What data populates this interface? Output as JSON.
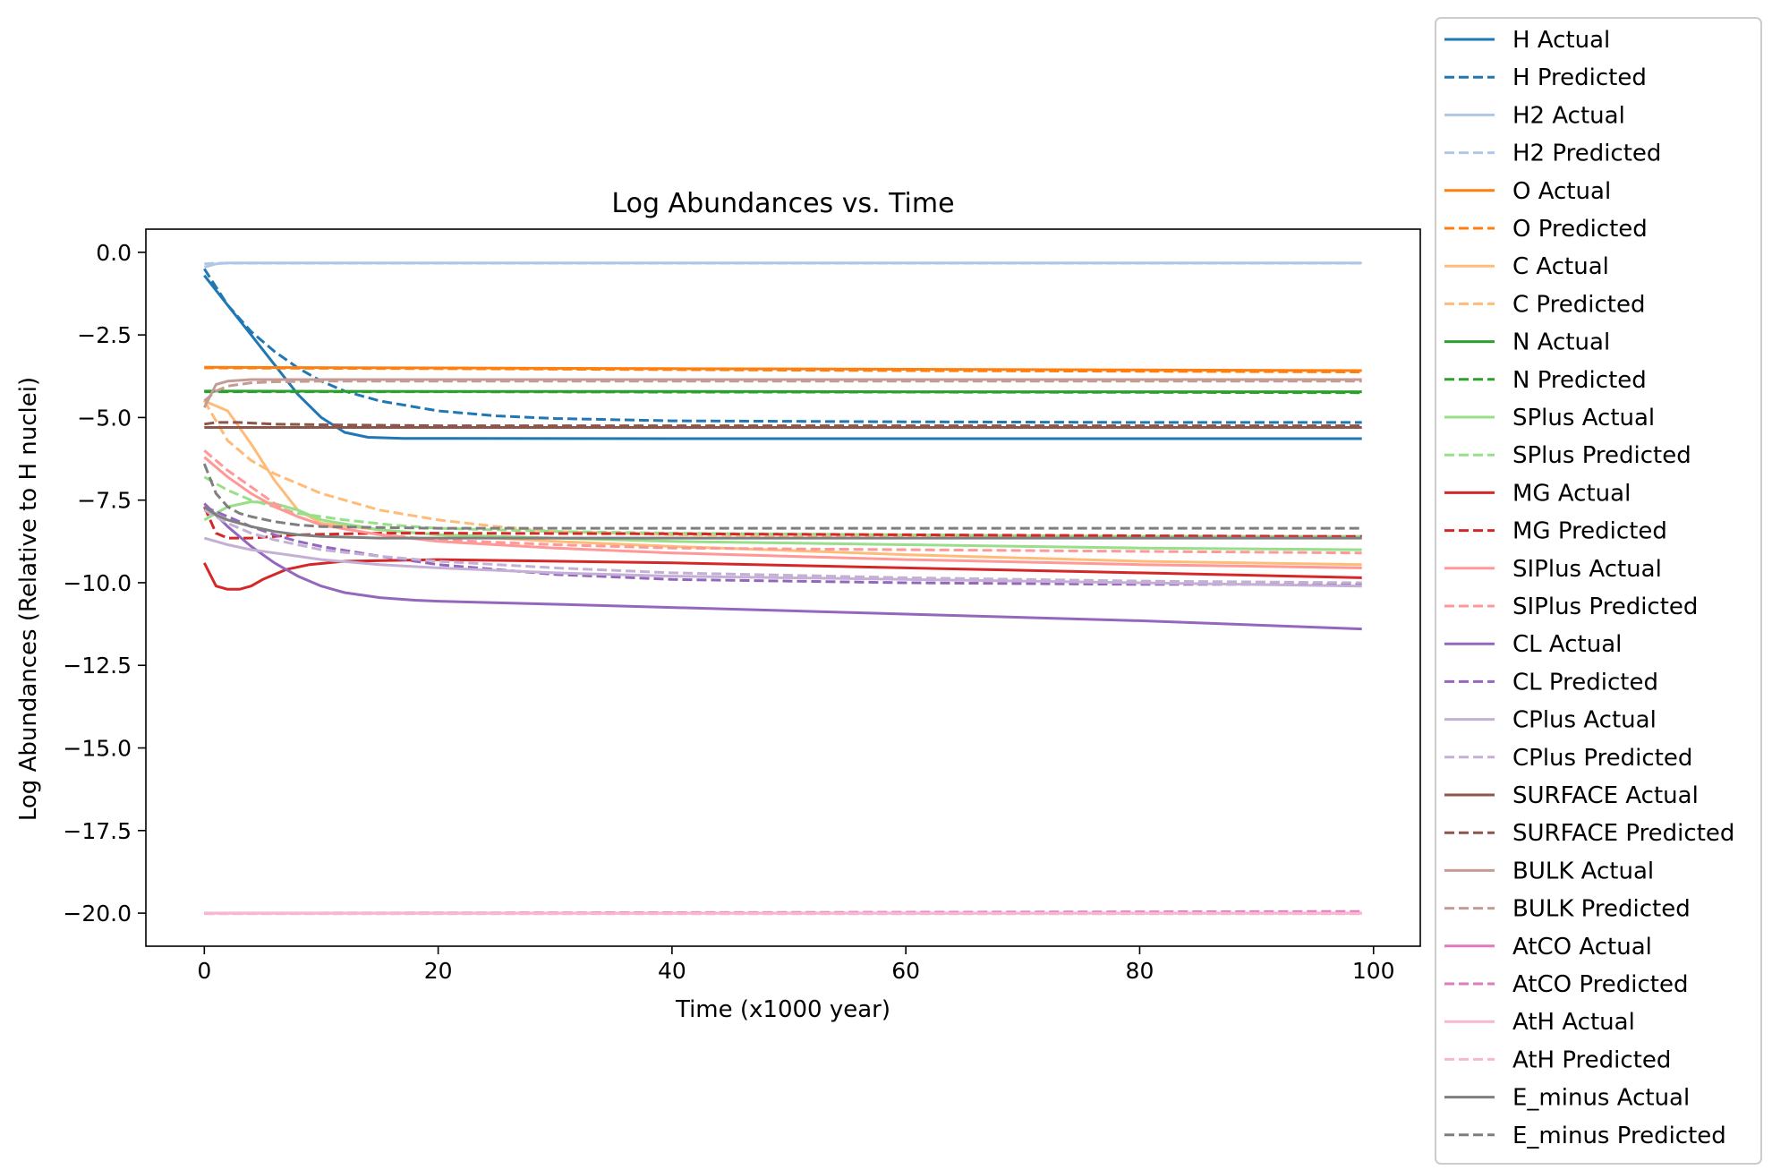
{
  "chart_data": {
    "type": "line",
    "title": "Log Abundances vs. Time",
    "xlabel": "Time (x1000 year)",
    "ylabel": "Log Abundances (Relative to H nuclei)",
    "xlim": [
      -5,
      104
    ],
    "ylim": [
      -21.0,
      0.7
    ],
    "xticks": [
      0,
      20,
      40,
      60,
      80,
      100
    ],
    "xtick_labels": [
      "0",
      "20",
      "40",
      "60",
      "80",
      "100"
    ],
    "yticks": [
      0.0,
      -2.5,
      -5.0,
      -7.5,
      -10.0,
      -12.5,
      -15.0,
      -17.5,
      -20.0
    ],
    "ytick_labels": [
      "0.0",
      "−2.5",
      "−5.0",
      "−7.5",
      "−10.0",
      "−12.5",
      "−15.0",
      "−17.5",
      "−20.0"
    ],
    "grid": false,
    "legend_position": "outside-right",
    "series": [
      {
        "name": "H Actual",
        "color": "#1f77b4",
        "style": "solid",
        "x": [
          0,
          2,
          4,
          6,
          8,
          10,
          12,
          14,
          17,
          20,
          40,
          60,
          80,
          99
        ],
        "y": [
          -0.7,
          -1.6,
          -2.5,
          -3.4,
          -4.3,
          -5.0,
          -5.45,
          -5.6,
          -5.63,
          -5.63,
          -5.64,
          -5.64,
          -5.64,
          -5.64
        ]
      },
      {
        "name": "H Predicted",
        "color": "#1f77b4",
        "style": "dashed",
        "x": [
          0,
          2,
          4,
          6,
          8,
          10,
          12,
          15,
          20,
          25,
          30,
          40,
          60,
          80,
          99
        ],
        "y": [
          -0.5,
          -1.6,
          -2.4,
          -3.0,
          -3.5,
          -3.9,
          -4.2,
          -4.5,
          -4.8,
          -4.95,
          -5.03,
          -5.1,
          -5.13,
          -5.15,
          -5.15
        ]
      },
      {
        "name": "H2 Actual",
        "color": "#aec7e8",
        "style": "solid",
        "x": [
          0,
          1,
          2,
          5,
          99
        ],
        "y": [
          -0.45,
          -0.35,
          -0.32,
          -0.32,
          -0.32
        ]
      },
      {
        "name": "H2 Predicted",
        "color": "#aec7e8",
        "style": "dashed",
        "x": [
          0,
          1,
          2,
          5,
          99
        ],
        "y": [
          -0.35,
          -0.33,
          -0.33,
          -0.33,
          -0.33
        ]
      },
      {
        "name": "O Actual",
        "color": "#ff7f0e",
        "style": "solid",
        "x": [
          0,
          20,
          40,
          60,
          80,
          99
        ],
        "y": [
          -3.48,
          -3.5,
          -3.52,
          -3.54,
          -3.56,
          -3.58
        ]
      },
      {
        "name": "O Predicted",
        "color": "#ff7f0e",
        "style": "dashed",
        "x": [
          0,
          20,
          40,
          60,
          80,
          99
        ],
        "y": [
          -3.5,
          -3.52,
          -3.55,
          -3.58,
          -3.6,
          -3.62
        ]
      },
      {
        "name": "C Actual",
        "color": "#ffbb78",
        "style": "solid",
        "x": [
          0,
          2,
          4,
          6,
          8,
          10,
          15,
          20,
          30,
          40,
          60,
          80,
          99
        ],
        "y": [
          -4.5,
          -4.8,
          -5.8,
          -6.9,
          -7.8,
          -8.2,
          -8.4,
          -8.55,
          -8.75,
          -8.9,
          -9.15,
          -9.35,
          -9.45
        ]
      },
      {
        "name": "C Predicted",
        "color": "#ffbb78",
        "style": "dashed",
        "x": [
          0,
          1,
          2,
          4,
          6,
          8,
          10,
          15,
          20,
          25,
          30,
          40,
          60,
          80,
          99
        ],
        "y": [
          -4.5,
          -5.1,
          -5.7,
          -6.3,
          -6.7,
          -7.0,
          -7.3,
          -7.8,
          -8.1,
          -8.3,
          -8.45,
          -8.55,
          -8.6,
          -8.6,
          -8.6
        ]
      },
      {
        "name": "N Actual",
        "color": "#2ca02c",
        "style": "solid",
        "x": [
          0,
          20,
          40,
          60,
          80,
          99
        ],
        "y": [
          -4.2,
          -4.21,
          -4.21,
          -4.22,
          -4.22,
          -4.22
        ]
      },
      {
        "name": "N Predicted",
        "color": "#2ca02c",
        "style": "dashed",
        "x": [
          0,
          20,
          40,
          60,
          80,
          99
        ],
        "y": [
          -4.22,
          -4.22,
          -4.23,
          -4.23,
          -4.24,
          -4.25
        ]
      },
      {
        "name": "SPlus Actual",
        "color": "#98df8a",
        "style": "solid",
        "x": [
          0,
          2,
          4,
          6,
          8,
          10,
          15,
          20,
          30,
          40,
          60,
          80,
          99
        ],
        "y": [
          -8.1,
          -7.7,
          -7.55,
          -7.6,
          -7.8,
          -8.1,
          -8.4,
          -8.55,
          -8.65,
          -8.75,
          -8.85,
          -8.95,
          -9.0
        ]
      },
      {
        "name": "SPlus Predicted",
        "color": "#98df8a",
        "style": "dashed",
        "x": [
          0,
          2,
          4,
          8,
          12,
          16,
          20,
          30,
          40,
          60,
          80,
          99
        ],
        "y": [
          -6.8,
          -7.2,
          -7.5,
          -7.9,
          -8.1,
          -8.25,
          -8.35,
          -8.45,
          -8.5,
          -8.55,
          -8.6,
          -8.6
        ]
      },
      {
        "name": "MG Actual",
        "color": "#d62728",
        "style": "solid",
        "x": [
          0,
          1,
          2,
          3,
          4,
          5,
          7,
          9,
          12,
          20,
          40,
          60,
          80,
          99
        ],
        "y": [
          -9.4,
          -10.1,
          -10.2,
          -10.2,
          -10.1,
          -9.9,
          -9.6,
          -9.45,
          -9.35,
          -9.3,
          -9.4,
          -9.55,
          -9.7,
          -9.85
        ]
      },
      {
        "name": "MG Predicted",
        "color": "#d62728",
        "style": "dashed",
        "x": [
          0,
          1,
          2,
          4,
          8,
          15,
          20,
          40,
          60,
          80,
          99
        ],
        "y": [
          -7.7,
          -8.5,
          -8.65,
          -8.65,
          -8.55,
          -8.5,
          -8.5,
          -8.52,
          -8.55,
          -8.58,
          -8.6
        ]
      },
      {
        "name": "SIPlus Actual",
        "color": "#ff9896",
        "style": "solid",
        "x": [
          0,
          2,
          4,
          6,
          8,
          10,
          15,
          20,
          30,
          40,
          60,
          80,
          99
        ],
        "y": [
          -6.2,
          -6.8,
          -7.3,
          -7.7,
          -8.0,
          -8.25,
          -8.55,
          -8.75,
          -8.95,
          -9.1,
          -9.3,
          -9.45,
          -9.55
        ]
      },
      {
        "name": "SIPlus Predicted",
        "color": "#ff9896",
        "style": "dashed",
        "x": [
          0,
          2,
          4,
          6,
          8,
          10,
          15,
          20,
          30,
          40,
          60,
          80,
          99
        ],
        "y": [
          -6.0,
          -6.6,
          -7.1,
          -7.6,
          -8.0,
          -8.25,
          -8.55,
          -8.7,
          -8.85,
          -8.95,
          -9.0,
          -9.05,
          -9.1
        ]
      },
      {
        "name": "CL Actual",
        "color": "#9467bd",
        "style": "solid",
        "x": [
          0,
          2,
          4,
          6,
          8,
          10,
          12,
          15,
          18,
          20,
          30,
          40,
          60,
          80,
          99
        ],
        "y": [
          -7.6,
          -8.3,
          -8.9,
          -9.4,
          -9.8,
          -10.1,
          -10.3,
          -10.45,
          -10.53,
          -10.56,
          -10.65,
          -10.75,
          -10.95,
          -11.15,
          -11.4
        ]
      },
      {
        "name": "CL Predicted",
        "color": "#9467bd",
        "style": "dashed",
        "x": [
          0,
          2,
          4,
          6,
          8,
          10,
          15,
          20,
          30,
          40,
          60,
          80,
          99
        ],
        "y": [
          -7.7,
          -8.0,
          -8.3,
          -8.55,
          -8.75,
          -8.9,
          -9.2,
          -9.45,
          -9.75,
          -9.9,
          -10.0,
          -10.05,
          -10.05
        ]
      },
      {
        "name": "CPlus Actual",
        "color": "#c5b0d5",
        "style": "solid",
        "x": [
          0,
          2,
          4,
          6,
          8,
          10,
          15,
          20,
          30,
          40,
          60,
          80,
          99
        ],
        "y": [
          -8.65,
          -8.85,
          -9.0,
          -9.1,
          -9.2,
          -9.3,
          -9.45,
          -9.55,
          -9.7,
          -9.8,
          -9.9,
          -10.0,
          -10.1
        ]
      },
      {
        "name": "CPlus Predicted",
        "color": "#c5b0d5",
        "style": "dashed",
        "x": [
          0,
          2,
          4,
          6,
          8,
          10,
          15,
          20,
          30,
          40,
          60,
          80,
          99
        ],
        "y": [
          -7.8,
          -8.2,
          -8.5,
          -8.7,
          -8.85,
          -9.0,
          -9.2,
          -9.35,
          -9.55,
          -9.7,
          -9.85,
          -9.95,
          -10.0
        ]
      },
      {
        "name": "SURFACE Actual",
        "color": "#8c564b",
        "style": "solid",
        "x": [
          0,
          20,
          40,
          60,
          80,
          99
        ],
        "y": [
          -5.3,
          -5.3,
          -5.3,
          -5.3,
          -5.3,
          -5.3
        ]
      },
      {
        "name": "SURFACE Predicted",
        "color": "#8c564b",
        "style": "dashed",
        "x": [
          0,
          1,
          3,
          6,
          10,
          20,
          40,
          60,
          80,
          99
        ],
        "y": [
          -5.2,
          -5.15,
          -5.15,
          -5.2,
          -5.22,
          -5.25,
          -5.25,
          -5.25,
          -5.25,
          -5.25
        ]
      },
      {
        "name": "BULK Actual",
        "color": "#c49c94",
        "style": "solid",
        "x": [
          0,
          1,
          2,
          4,
          6,
          10,
          20,
          40,
          60,
          80,
          99
        ],
        "y": [
          -4.7,
          -4.0,
          -3.9,
          -3.85,
          -3.85,
          -3.85,
          -3.85,
          -3.85,
          -3.85,
          -3.85,
          -3.85
        ]
      },
      {
        "name": "BULK Predicted",
        "color": "#c49c94",
        "style": "dashed",
        "x": [
          0,
          1,
          2,
          4,
          6,
          10,
          20,
          40,
          60,
          80,
          99
        ],
        "y": [
          -4.5,
          -4.2,
          -4.05,
          -3.95,
          -3.92,
          -3.9,
          -3.9,
          -3.9,
          -3.9,
          -3.9,
          -3.9
        ]
      },
      {
        "name": "AtCO Actual",
        "color": "#e377c2",
        "style": "solid",
        "x": [
          0,
          50,
          99
        ],
        "y": [
          -20.0,
          -20.0,
          -20.0
        ]
      },
      {
        "name": "AtCO Predicted",
        "color": "#e377c2",
        "style": "dashed",
        "x": [
          0,
          50,
          99
        ],
        "y": [
          -20.0,
          -19.98,
          -19.95
        ]
      },
      {
        "name": "AtH Actual",
        "color": "#f7b6d2",
        "style": "solid",
        "x": [
          0,
          50,
          99
        ],
        "y": [
          -20.0,
          -20.0,
          -20.0
        ]
      },
      {
        "name": "AtH Predicted",
        "color": "#f7b6d2",
        "style": "dashed",
        "x": [
          0,
          50,
          99
        ],
        "y": [
          -20.02,
          -20.02,
          -20.02
        ]
      },
      {
        "name": "E_minus Actual",
        "color": "#7f7f7f",
        "style": "solid",
        "x": [
          0,
          1,
          2,
          4,
          6,
          8,
          10,
          15,
          20,
          40,
          60,
          80,
          99
        ],
        "y": [
          -7.7,
          -7.95,
          -8.1,
          -8.3,
          -8.45,
          -8.55,
          -8.6,
          -8.65,
          -8.65,
          -8.65,
          -8.65,
          -8.65,
          -8.65
        ]
      },
      {
        "name": "E_minus Predicted",
        "color": "#7f7f7f",
        "style": "dashed",
        "x": [
          0,
          1,
          2,
          3,
          4,
          6,
          8,
          10,
          15,
          20,
          40,
          60,
          80,
          99
        ],
        "y": [
          -6.4,
          -7.3,
          -7.7,
          -7.9,
          -8.0,
          -8.15,
          -8.25,
          -8.3,
          -8.33,
          -8.35,
          -8.35,
          -8.35,
          -8.35,
          -8.35
        ]
      }
    ]
  }
}
